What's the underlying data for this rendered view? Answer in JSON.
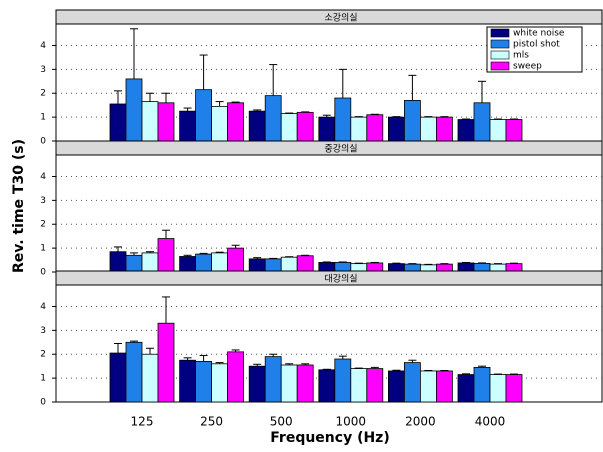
{
  "chart_data": {
    "type": "bar",
    "categories": [
      "125",
      "250",
      "500",
      "1000",
      "2000",
      "4000"
    ],
    "xlabel": "Frequency (Hz)",
    "ylabel": "Rev. time T30 (s)",
    "ylim": [
      0,
      4.9
    ],
    "yticks": [
      0,
      1,
      2,
      3,
      4
    ],
    "grid": true,
    "legend_position": "upper right",
    "legend": [
      {
        "name": "white noise",
        "color": "#000080"
      },
      {
        "name": "pistol shot",
        "color": "#1e80e8"
      },
      {
        "name": "mls",
        "color": "#ccffff"
      },
      {
        "name": "sweep",
        "color": "#ff00ff"
      }
    ],
    "panels": [
      {
        "title": "소강의실",
        "series": [
          {
            "values": [
              1.55,
              1.25,
              1.25,
              1.0,
              1.0,
              0.9
            ],
            "errors": [
              0.55,
              0.13,
              0.05,
              0.08,
              0.02,
              0.02
            ]
          },
          {
            "values": [
              2.6,
              2.15,
              1.9,
              1.8,
              1.7,
              1.6
            ],
            "errors": [
              2.1,
              1.45,
              1.3,
              1.2,
              1.05,
              0.9
            ]
          },
          {
            "values": [
              1.65,
              1.45,
              1.15,
              1.0,
              1.0,
              0.9
            ],
            "errors": [
              0.35,
              0.2,
              0.02,
              0.02,
              0.02,
              0.02
            ]
          },
          {
            "values": [
              1.6,
              1.6,
              1.2,
              1.1,
              1.0,
              0.9
            ],
            "errors": [
              0.4,
              0.03,
              0.02,
              0.02,
              0.02,
              0.02
            ]
          }
        ]
      },
      {
        "title": "중강의실",
        "series": [
          {
            "values": [
              0.85,
              0.65,
              0.55,
              0.4,
              0.35,
              0.38
            ],
            "errors": [
              0.2,
              0.05,
              0.05,
              0.02,
              0.02,
              0.02
            ]
          },
          {
            "values": [
              0.7,
              0.75,
              0.55,
              0.4,
              0.33,
              0.36
            ],
            "errors": [
              0.1,
              0.03,
              0.02,
              0.02,
              0.02,
              0.02
            ]
          },
          {
            "values": [
              0.8,
              0.8,
              0.62,
              0.35,
              0.3,
              0.33
            ],
            "errors": [
              0.05,
              0.03,
              0.02,
              0.02,
              0.02,
              0.02
            ]
          },
          {
            "values": [
              1.4,
              1.0,
              0.68,
              0.38,
              0.33,
              0.35
            ],
            "errors": [
              0.35,
              0.12,
              0.02,
              0.02,
              0.02,
              0.02
            ]
          }
        ]
      },
      {
        "title": "대강의실",
        "series": [
          {
            "values": [
              2.05,
              1.75,
              1.5,
              1.35,
              1.3,
              1.15
            ],
            "errors": [
              0.4,
              0.1,
              0.08,
              0.02,
              0.03,
              0.03
            ]
          },
          {
            "values": [
              2.5,
              1.7,
              1.9,
              1.8,
              1.65,
              1.45
            ],
            "errors": [
              0.05,
              0.25,
              0.1,
              0.12,
              0.1,
              0.05
            ]
          },
          {
            "values": [
              2.0,
              1.6,
              1.55,
              1.4,
              1.3,
              1.15
            ],
            "errors": [
              0.25,
              0.05,
              0.05,
              0.02,
              0.02,
              0.02
            ]
          },
          {
            "values": [
              3.3,
              2.1,
              1.55,
              1.4,
              1.3,
              1.15
            ],
            "errors": [
              1.1,
              0.08,
              0.05,
              0.05,
              0.02,
              0.02
            ]
          }
        ]
      }
    ]
  }
}
